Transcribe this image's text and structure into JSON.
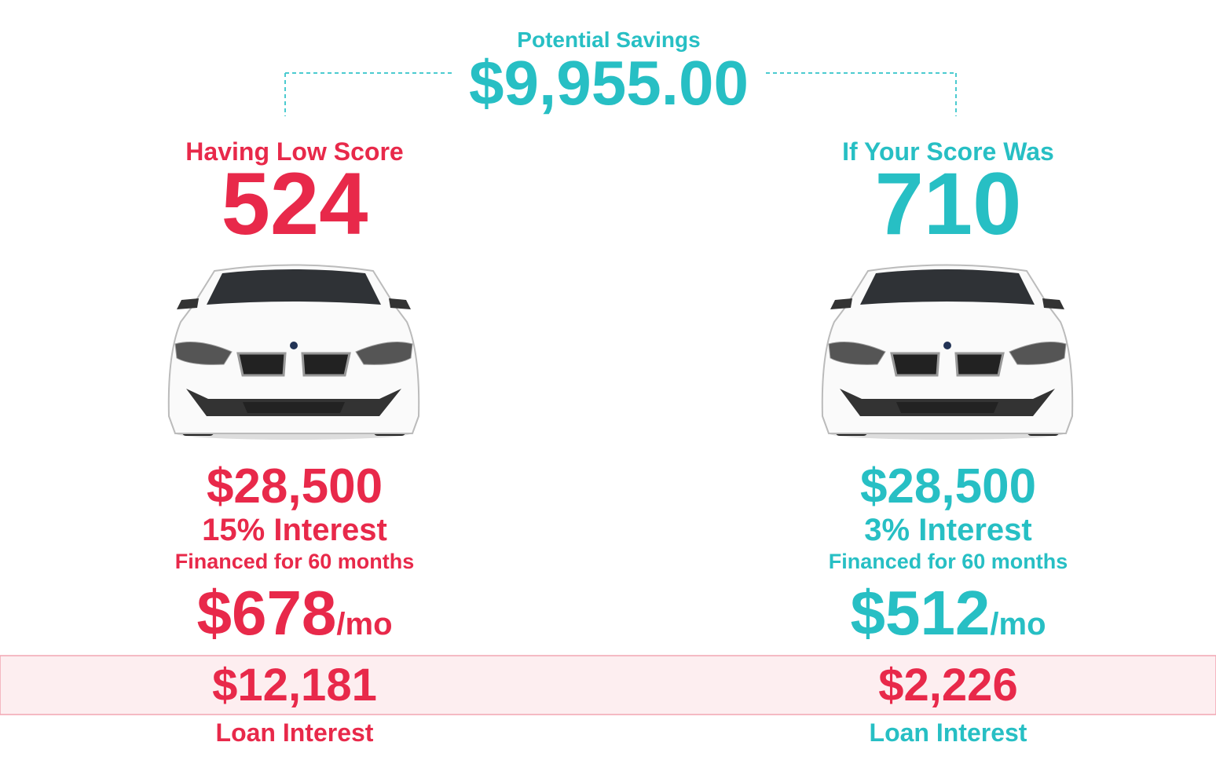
{
  "savings": {
    "label": "Potential Savings",
    "amount": "$9,955.00"
  },
  "low": {
    "heading": "Having Low Score",
    "score": "524",
    "price": "$28,500",
    "rate": "15% Interest",
    "term": "Financed for 60 months",
    "payment": "$678",
    "per": "/mo",
    "interest": "$12,181",
    "interest_label": "Loan Interest"
  },
  "high": {
    "heading": "If Your Score Was",
    "score": "710",
    "price": "$28,500",
    "rate": "3% Interest",
    "term": "Financed for 60 months",
    "payment": "$512",
    "per": "/mo",
    "interest": "$2,226",
    "interest_label": "Loan Interest"
  }
}
